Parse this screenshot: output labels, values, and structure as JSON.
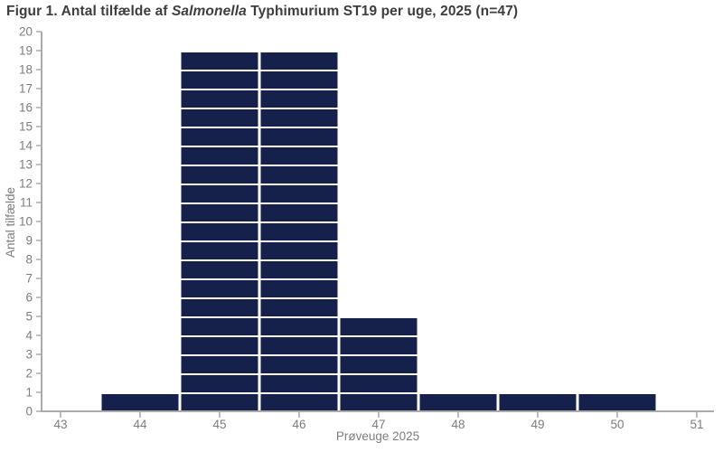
{
  "figure": {
    "title_prefix": "Figur 1. Antal tilfælde af ",
    "title_italic": "Salmonella",
    "title_suffix": " Typhimurium ST19 per uge, 2025 (n=47)"
  },
  "chart_data": {
    "type": "bar",
    "subtype": "epi-curve-unit-boxes",
    "title": "Figur 1. Antal tilfælde af Salmonella Typhimurium ST19 per uge, 2025 (n=47)",
    "n_total": 47,
    "xlabel": "Prøveuge 2025",
    "ylabel": "Antal tilfælde",
    "categories": [
      44,
      45,
      46,
      47,
      48,
      49,
      50
    ],
    "values": [
      1,
      19,
      19,
      5,
      1,
      1,
      1
    ],
    "x_ticks": [
      43,
      44,
      45,
      46,
      47,
      48,
      49,
      50,
      51
    ],
    "y_ticks": [
      0,
      1,
      2,
      3,
      4,
      5,
      6,
      7,
      8,
      9,
      10,
      11,
      12,
      13,
      14,
      15,
      16,
      17,
      18,
      19,
      20
    ],
    "xlim": [
      42.5,
      51.5
    ],
    "ylim": [
      0,
      20
    ],
    "grid": false,
    "legend": "none",
    "colors": {
      "bar_fill": "#15214b",
      "unit_gap": "#ffffff",
      "axis_line": "#ababab",
      "tick_label": "#7d7d7d",
      "title_text": "#3d3d3d"
    }
  }
}
